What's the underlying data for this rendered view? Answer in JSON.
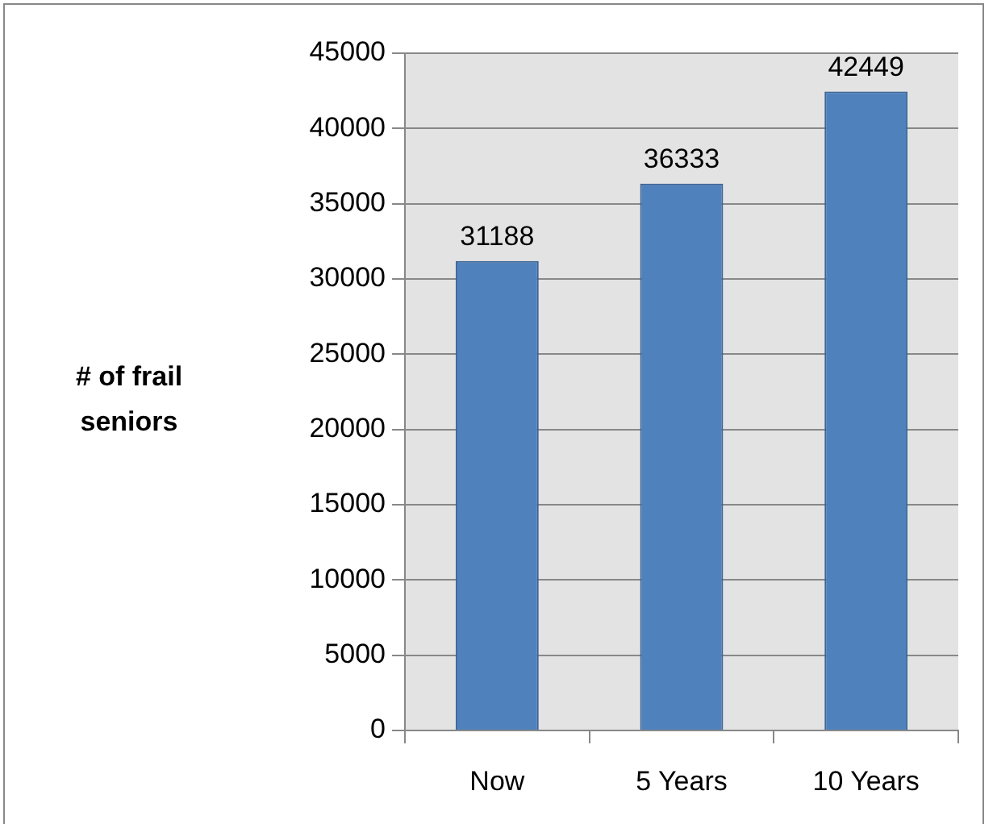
{
  "chart_data": {
    "type": "bar",
    "ylabel": "# of frail seniors",
    "categories": [
      "Now",
      "5 Years",
      "10 Years"
    ],
    "values": [
      31188,
      36333,
      42449
    ],
    "color": "#4f81bd",
    "ylim": [
      0,
      45000
    ],
    "yticks": [
      0,
      5000,
      10000,
      15000,
      20000,
      25000,
      30000,
      35000,
      40000,
      45000
    ],
    "grid": "y",
    "data_labels": true,
    "legend": false
  }
}
